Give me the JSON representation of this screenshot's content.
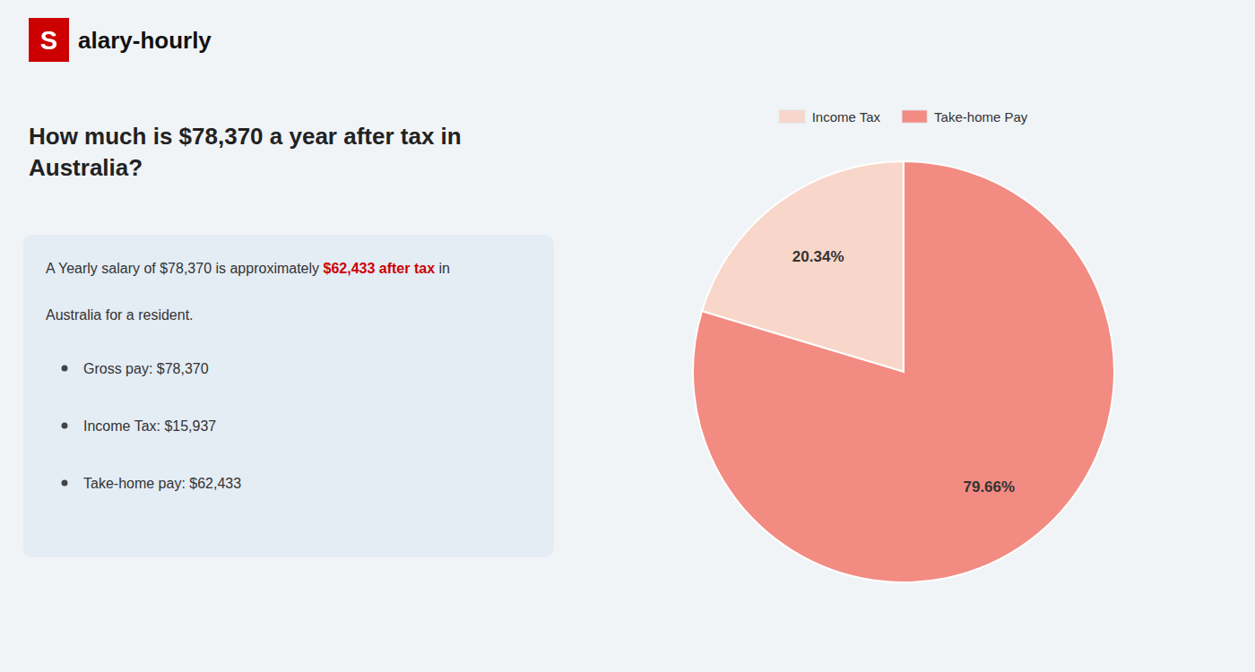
{
  "chart_data": {
    "type": "pie",
    "title": "How much is $78,370 a year after tax in\nAustralia?",
    "logo_mark": "S",
    "logo_text": "alary-hourly",
    "intro": [
      "A Yearly salary of $78,370 is approximately ",
      "$62,433 after tax",
      " in"
    ],
    "intro_line2": "Australia for a resident.",
    "bullets": [
      "Gross pay: $78,370",
      "Income Tax: $15,937",
      "Take-home pay: $62,433"
    ],
    "categories": [
      "Income Tax",
      "Take-home Pay"
    ],
    "values": [
      20.34,
      79.66
    ],
    "value_labels": [
      "20.34%",
      "79.66%"
    ],
    "colors": [
      "#f8d7ca",
      "#f28b82"
    ],
    "data_labels": true
  }
}
